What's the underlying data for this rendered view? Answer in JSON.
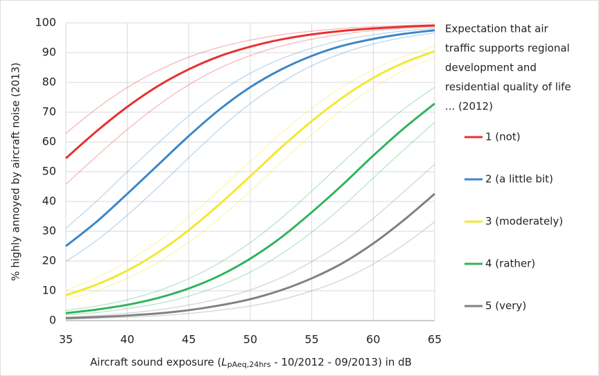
{
  "chart_data": {
    "type": "line",
    "ylabel": "% highly annoyed by aircraft noise (2013)",
    "xlabel_parts": [
      "Aircraft sound exposure (",
      "L",
      "pAeq,24hrs",
      " - 10/2012 - 09/2013)  in dB"
    ],
    "legend_title": [
      "Expectation that air",
      "traffic supports regional",
      "development and",
      "residential quality of life",
      "... (2012)"
    ],
    "legend": "right",
    "grid": true,
    "x": [
      35,
      37.5,
      40,
      42.5,
      45,
      47.5,
      50,
      52.5,
      55,
      57.5,
      60,
      62.5,
      65
    ],
    "xlim": [
      35,
      65
    ],
    "xticks": [
      35,
      40,
      45,
      50,
      55,
      60,
      65
    ],
    "ylim": [
      0,
      100
    ],
    "yticks": [
      0,
      10,
      20,
      30,
      40,
      50,
      60,
      70,
      80,
      90,
      100
    ],
    "series": [
      {
        "name": "1 (not)",
        "color": "#e8302f",
        "values": [
          54.5,
          63.6,
          71.8,
          78.8,
          84.4,
          88.8,
          92.0,
          94.4,
          96.1,
          97.3,
          98.1,
          98.7,
          99.1
        ],
        "ci_upper": [
          62.9,
          71.2,
          78.3,
          84.0,
          88.5,
          91.8,
          94.2,
          96.0,
          97.2,
          98.1,
          98.7,
          99.1,
          99.4
        ],
        "ci_lower": [
          45.8,
          55.2,
          64.2,
          72.3,
          79.2,
          84.8,
          89.0,
          92.2,
          94.5,
          96.2,
          97.4,
          98.2,
          98.7
        ]
      },
      {
        "name": "2 (a little bit)",
        "color": "#3a86c8",
        "values": [
          25.0,
          33.2,
          42.6,
          52.3,
          62.0,
          70.9,
          78.4,
          84.3,
          88.9,
          92.3,
          94.6,
          96.3,
          97.5
        ],
        "ci_upper": [
          31.0,
          40.1,
          50.0,
          59.6,
          68.8,
          76.7,
          83.1,
          87.9,
          91.5,
          94.2,
          96.0,
          97.3,
          98.1
        ],
        "ci_lower": [
          19.8,
          26.9,
          35.4,
          44.8,
          54.7,
          64.3,
          72.9,
          79.9,
          85.6,
          89.8,
          92.9,
          95.1,
          96.6
        ]
      },
      {
        "name": "3 (moderately)",
        "color": "#f2e92e",
        "values": [
          8.5,
          12.1,
          16.8,
          22.9,
          30.4,
          39.1,
          48.5,
          58.1,
          67.0,
          74.9,
          81.5,
          86.6,
          90.5
        ],
        "ci_upper": [
          10.2,
          14.4,
          19.8,
          26.6,
          34.8,
          43.9,
          53.5,
          62.8,
          71.3,
          78.5,
          84.3,
          88.7,
          92.1
        ],
        "ci_lower": [
          7.1,
          10.1,
          14.2,
          19.5,
          26.3,
          34.4,
          43.5,
          53.1,
          62.5,
          71.0,
          78.2,
          84.1,
          88.6
        ]
      },
      {
        "name": "4 (rather)",
        "color": "#2fb35c",
        "values": [
          2.5,
          3.7,
          5.3,
          7.6,
          10.8,
          15.1,
          20.8,
          27.9,
          36.4,
          45.6,
          55.4,
          64.6,
          72.9
        ],
        "ci_upper": [
          3.4,
          4.9,
          7.0,
          10.0,
          14.1,
          19.4,
          26.2,
          34.3,
          43.5,
          53.1,
          62.6,
          71.1,
          78.4
        ],
        "ci_lower": [
          1.9,
          2.7,
          4.0,
          5.7,
          8.2,
          11.7,
          16.3,
          22.3,
          29.7,
          38.3,
          47.9,
          57.4,
          66.6
        ]
      },
      {
        "name": "5 (very)",
        "color": "#808080",
        "values": [
          0.8,
          1.2,
          1.7,
          2.4,
          3.5,
          5.1,
          7.2,
          10.2,
          14.2,
          19.3,
          25.9,
          33.8,
          42.6
        ],
        "ci_upper": [
          1.2,
          1.7,
          2.5,
          3.6,
          5.2,
          7.4,
          10.3,
          14.4,
          19.8,
          26.3,
          34.3,
          43.3,
          52.5
        ],
        "ci_lower": [
          0.5,
          0.8,
          1.1,
          1.6,
          2.4,
          3.5,
          4.9,
          7.0,
          10.0,
          13.8,
          19.0,
          25.5,
          33.2
        ]
      }
    ]
  }
}
